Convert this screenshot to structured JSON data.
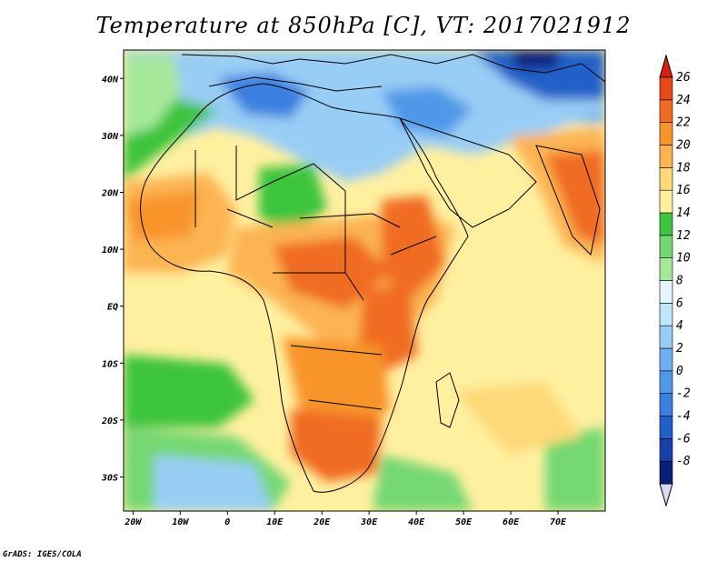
{
  "title": "Temperature at 850hPa [C], VT: 2017021912",
  "credit": "GrADS: IGES/COLA",
  "map": {
    "lon_range": [
      -22,
      80
    ],
    "lat_range": [
      -36,
      45
    ],
    "lat_ticks": [
      {
        "value": 40,
        "label": "40N"
      },
      {
        "value": 30,
        "label": "30N"
      },
      {
        "value": 20,
        "label": "20N"
      },
      {
        "value": 10,
        "label": "10N"
      },
      {
        "value": 0,
        "label": "EQ"
      },
      {
        "value": -10,
        "label": "10S"
      },
      {
        "value": -20,
        "label": "20S"
      },
      {
        "value": -30,
        "label": "30S"
      }
    ],
    "lon_ticks": [
      {
        "value": -20,
        "label": "20W"
      },
      {
        "value": -10,
        "label": "10W"
      },
      {
        "value": 0,
        "label": "0"
      },
      {
        "value": 10,
        "label": "10E"
      },
      {
        "value": 20,
        "label": "20E"
      },
      {
        "value": 30,
        "label": "30E"
      },
      {
        "value": 40,
        "label": "40E"
      },
      {
        "value": 50,
        "label": "50E"
      },
      {
        "value": 60,
        "label": "60E"
      },
      {
        "value": 70,
        "label": "70E"
      }
    ]
  },
  "colorbar": {
    "levels": [
      {
        "label": "-8",
        "color": "#0a1e78"
      },
      {
        "label": "-6",
        "color": "#1840a8"
      },
      {
        "label": "-4",
        "color": "#2060c8"
      },
      {
        "label": "-2",
        "color": "#3a80e0"
      },
      {
        "label": "0",
        "color": "#5098e8"
      },
      {
        "label": "2",
        "color": "#70b0f0"
      },
      {
        "label": "4",
        "color": "#98cdf5"
      },
      {
        "label": "6",
        "color": "#bfe6fa"
      },
      {
        "label": "8",
        "color": "#e4f6fa"
      },
      {
        "label": "10",
        "color": "#a6e89a"
      },
      {
        "label": "12",
        "color": "#74d872"
      },
      {
        "label": "14",
        "color": "#3ec43e"
      },
      {
        "label": "16",
        "color": "#fff0a0"
      },
      {
        "label": "18",
        "color": "#ffd878"
      },
      {
        "label": "20",
        "color": "#fcb452"
      },
      {
        "label": "22",
        "color": "#f8942c"
      },
      {
        "label": "24",
        "color": "#f06c20"
      },
      {
        "label": "26",
        "color": "#e84818"
      }
    ],
    "under_color": "#dcdaf2",
    "over_color": "#dc2010"
  }
}
